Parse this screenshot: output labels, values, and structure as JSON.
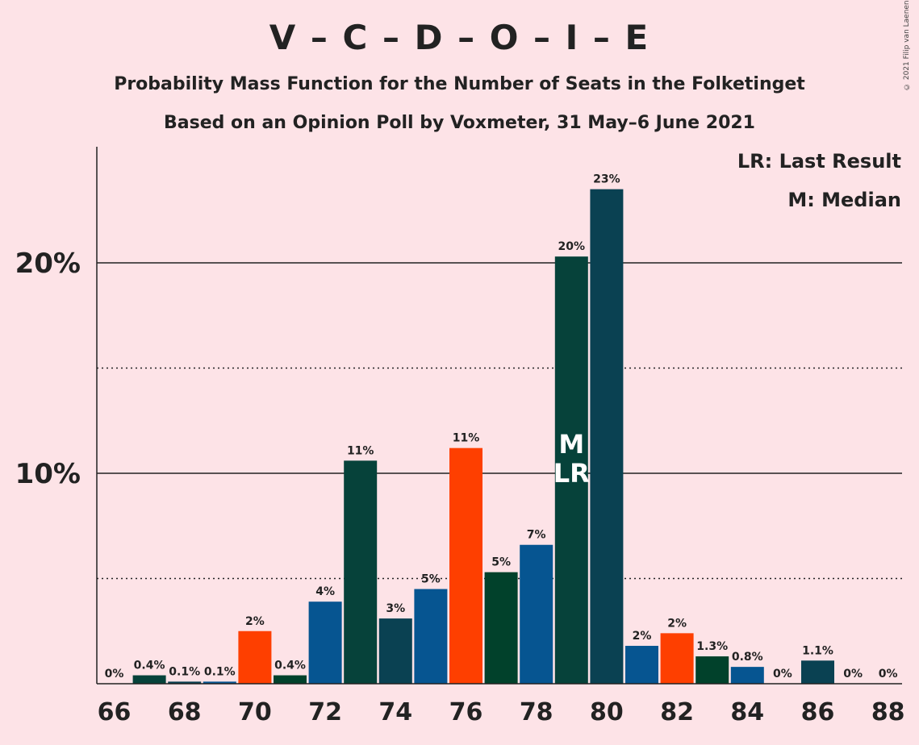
{
  "title": "V – C – D – O – I – E",
  "subtitle1": "Probability Mass Function for the Number of Seats in the Folketinget",
  "subtitle2": "Based on an Opinion Poll by Voxmeter, 31 May–6 June 2021",
  "legend": {
    "last_result": "LR: Last Result",
    "median": "M: Median"
  },
  "copyright": "© 2021 Filip van Laenen",
  "colors": {
    "background": "#FDE3E7",
    "dark_teal": "#06423A",
    "dark_slate": "#0A4152",
    "blue": "#065591",
    "orange": "#FE3F00",
    "dark_green": "#01412B"
  },
  "chart_data": {
    "type": "bar",
    "x": [
      66,
      67,
      68,
      69,
      70,
      71,
      72,
      73,
      74,
      75,
      76,
      77,
      78,
      79,
      80,
      81,
      82,
      83,
      84,
      85,
      86,
      87,
      88
    ],
    "values": [
      0,
      0.4,
      0.1,
      0.1,
      2.5,
      0.4,
      3.9,
      10.6,
      3.1,
      4.5,
      11.2,
      5.3,
      6.6,
      20.3,
      23.5,
      1.8,
      2.4,
      1.3,
      0.8,
      0,
      1.1,
      0,
      0
    ],
    "labels": [
      "0%",
      "0.4%",
      "0.1%",
      "0.1%",
      "2%",
      "0.4%",
      "4%",
      "11%",
      "3%",
      "5%",
      "11%",
      "5%",
      "7%",
      "20%",
      "23%",
      "2%",
      "2%",
      "1.3%",
      "0.8%",
      "0%",
      "1.1%",
      "0%",
      "0%"
    ],
    "bar_colors": [
      "#06423A",
      "#06423A",
      "#0A4152",
      "#065591",
      "#FE3F00",
      "#01412B",
      "#065591",
      "#06423A",
      "#0A4152",
      "#065591",
      "#FE3F00",
      "#01412B",
      "#065591",
      "#06423A",
      "#0A4152",
      "#065591",
      "#FE3F00",
      "#01412B",
      "#065591",
      "#06423A",
      "#0A4152",
      "#065591",
      "#FE3F00"
    ],
    "xticks": [
      "66",
      "68",
      "70",
      "72",
      "74",
      "76",
      "78",
      "80",
      "82",
      "84",
      "86",
      "88"
    ],
    "yticks": [
      "10%",
      "20%"
    ],
    "ylim": [
      0,
      25
    ],
    "solid_gridlines": [
      10,
      20
    ],
    "dotted_gridlines": [
      5,
      15
    ],
    "median_seat": 79,
    "median_mark": "M",
    "last_result_seat": 79,
    "last_result_mark": "LR"
  }
}
